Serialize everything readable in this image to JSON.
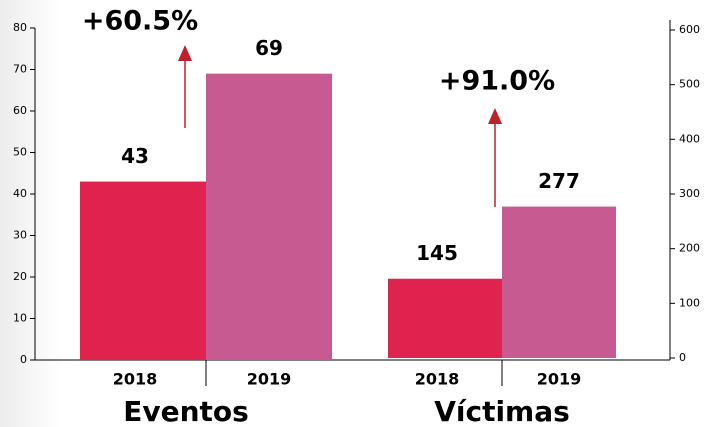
{
  "chart_data": {
    "type": "bar",
    "categories": [
      "Eventos",
      "Víctimas"
    ],
    "category_axes": [
      "y",
      "y2"
    ],
    "series": [
      {
        "name": "2018",
        "color": "#e0234e",
        "values": [
          43,
          145
        ]
      },
      {
        "name": "2019",
        "color": "#c85a92",
        "values": [
          69,
          277
        ]
      }
    ],
    "annotations": [
      "+60.5%",
      "+91.0%"
    ],
    "annotation_color": "#c0202a",
    "ylim": [
      0,
      80
    ],
    "yticks": [
      0,
      10,
      20,
      30,
      40,
      50,
      60,
      70,
      80
    ],
    "y2lim": [
      0,
      600
    ],
    "y2ticks": [
      0,
      100,
      200,
      300,
      400,
      500,
      600
    ]
  }
}
